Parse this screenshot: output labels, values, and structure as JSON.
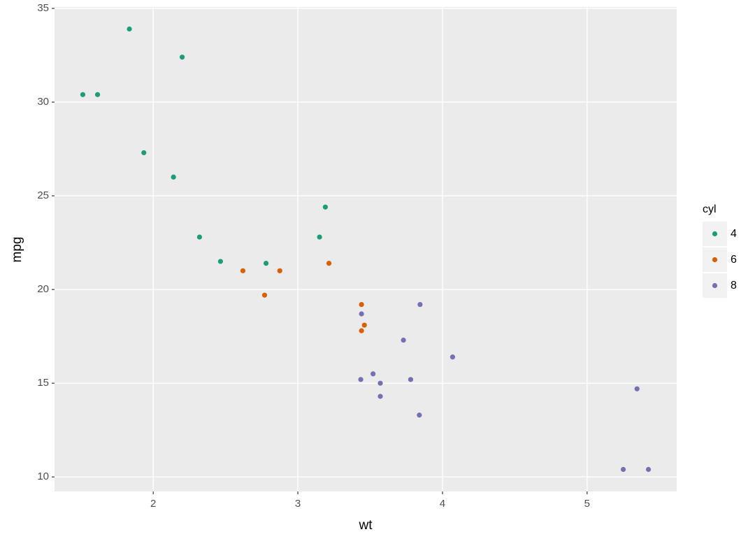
{
  "chart_data": {
    "type": "scatter",
    "x_label": "wt",
    "y_label": "mpg",
    "legend_title": "cyl",
    "legend": "right",
    "grid": true,
    "xlim": [
      1.31745,
      5.61955
    ],
    "ylim": [
      9.225,
      35.075
    ],
    "xticks": [
      2,
      3,
      4,
      5
    ],
    "yticks": [
      10,
      15,
      20,
      25,
      30,
      35
    ],
    "series": [
      {
        "name": "4",
        "color": "#1b9e77",
        "x": [
          2.32,
          3.19,
          3.15,
          2.2,
          1.615,
          1.835,
          2.465,
          1.935,
          2.14,
          1.513,
          2.78
        ],
        "values": [
          22.8,
          24.4,
          22.8,
          32.4,
          30.4,
          33.9,
          21.5,
          27.3,
          26.0,
          30.4,
          21.4
        ]
      },
      {
        "name": "6",
        "color": "#d95f02",
        "x": [
          2.62,
          2.875,
          3.215,
          3.46,
          3.44,
          3.44,
          2.77
        ],
        "values": [
          21.0,
          21.0,
          21.4,
          18.1,
          19.2,
          17.8,
          19.7
        ]
      },
      {
        "name": "8",
        "color": "#7570b3",
        "x": [
          3.44,
          3.57,
          4.07,
          3.73,
          3.78,
          5.25,
          5.424,
          5.345,
          3.52,
          3.435,
          3.84,
          3.845,
          3.57
        ],
        "values": [
          18.7,
          14.3,
          16.4,
          17.3,
          15.2,
          10.4,
          10.4,
          14.7,
          15.5,
          15.2,
          13.3,
          19.2,
          15.0
        ]
      }
    ]
  }
}
